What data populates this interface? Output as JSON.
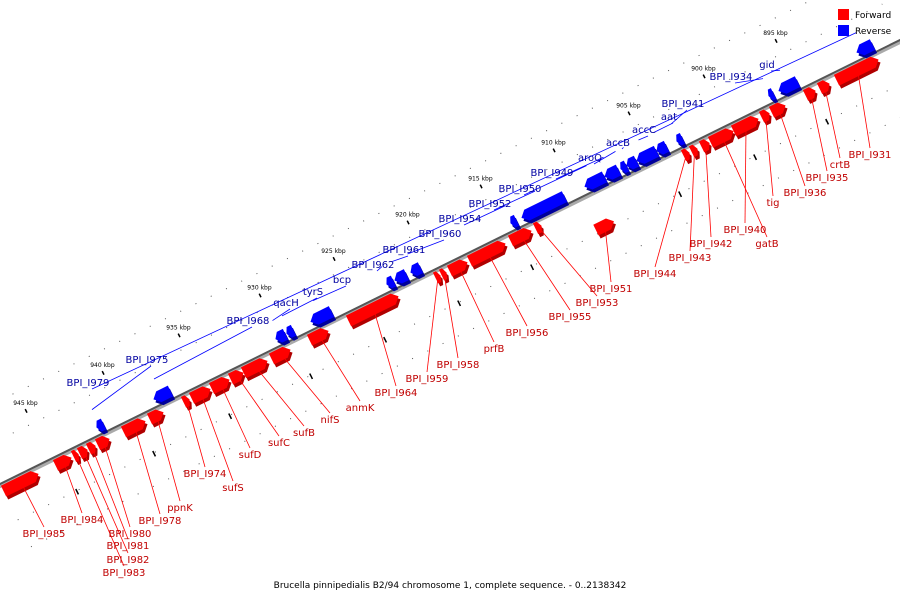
{
  "legend": {
    "forward_label": "Forward",
    "reverse_label": "Reverse",
    "forward_color": "#ff0000",
    "reverse_color": "#0000ff"
  },
  "caption": "Brucella pinnipedialis B2/94 chromosome 1, complete sequence. - 0..2138342",
  "colors": {
    "forward": "#ff0000",
    "reverse": "#0000ff",
    "backbone": "#888888",
    "leader_forward": "#ff0000",
    "leader_reverse": "#0000ff"
  },
  "kbp_ticks": [
    "895 kbp",
    "900 kbp",
    "905 kbp",
    "910 kbp",
    "915 kbp",
    "920 kbp",
    "925 kbp",
    "930 kbp",
    "935 kbp",
    "940 kbp",
    "945 kbp"
  ],
  "forward_genes": [
    "BPI_I931",
    "crtB",
    "BPI_I935",
    "BPI_I936",
    "tig",
    "BPI_I940",
    "gatB",
    "BPI_I942",
    "BPI_I943",
    "BPI_I944",
    "BPI_I951",
    "BPI_I953",
    "BPI_I955",
    "BPI_I956",
    "prfB",
    "BPI_I958",
    "BPI_I959",
    "BPI_I964",
    "anmK",
    "nifS",
    "sufB",
    "sufC",
    "sufD",
    "sufS",
    "BPI_I974",
    "ppnK",
    "BPI_I978",
    "BPI_I980",
    "BPI_I981",
    "BPI_I982",
    "BPI_I983",
    "BPI_I984",
    "BPI_I985"
  ],
  "reverse_genes": [
    "gid",
    "BPI_I934",
    "BPI_I941",
    "aat",
    "accC",
    "accB",
    "aroQ",
    "BPI_I949",
    "BPI_I950",
    "BPI_I952",
    "BPI_I954",
    "BPI_I960",
    "BPI_I961",
    "BPI_I962",
    "bcp",
    "tyrS",
    "qacH",
    "BPI_I968",
    "BPI_I975",
    "BPI_I979"
  ]
}
